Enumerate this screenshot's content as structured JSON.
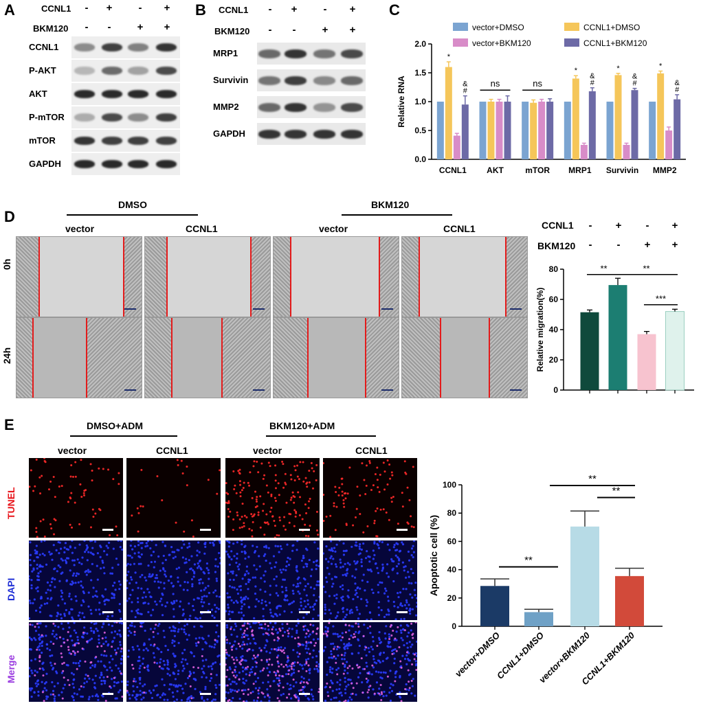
{
  "panels": {
    "A": "A",
    "B": "B",
    "C": "C",
    "D": "D",
    "E": "E"
  },
  "blotA": {
    "header": {
      "row1_label": "CCNL1",
      "row1": [
        "-",
        "+",
        "-",
        "+"
      ],
      "row2_label": "BKM120",
      "row2": [
        "-",
        "-",
        "+",
        "+"
      ]
    },
    "rows": [
      "CCNL1",
      "P-AKT",
      "AKT",
      "P-mTOR",
      "mTOR",
      "GAPDH"
    ],
    "intensity": [
      [
        0.45,
        0.8,
        0.5,
        0.85
      ],
      [
        0.25,
        0.6,
        0.35,
        0.75
      ],
      [
        0.9,
        0.9,
        0.9,
        0.9
      ],
      [
        0.3,
        0.75,
        0.45,
        0.8
      ],
      [
        0.85,
        0.8,
        0.8,
        0.8
      ],
      [
        0.9,
        0.9,
        0.9,
        0.9
      ]
    ]
  },
  "blotB": {
    "header": {
      "row1_label": "CCNL1",
      "row1": [
        "-",
        "+",
        "-",
        "+"
      ],
      "row2_label": "BKM120",
      "row2": [
        "-",
        "-",
        "+",
        "+"
      ]
    },
    "rows": [
      "MRP1",
      "Survivin",
      "MMP2",
      "GAPDH"
    ],
    "intensity": [
      [
        0.6,
        0.85,
        0.55,
        0.75
      ],
      [
        0.55,
        0.8,
        0.45,
        0.6
      ],
      [
        0.6,
        0.85,
        0.4,
        0.75
      ],
      [
        0.85,
        0.85,
        0.85,
        0.85
      ]
    ]
  },
  "panelD": {
    "groups": [
      "DMSO",
      "BKM120"
    ],
    "cols": [
      "vector",
      "CCNL1",
      "vector",
      "CCNL1"
    ],
    "rows": [
      "0h",
      "24h"
    ]
  },
  "panelE": {
    "groups": [
      "DMSO+ADM",
      "BKM120+ADM"
    ],
    "cols": [
      "vector",
      "CCNL1",
      "vector",
      "CCNL1"
    ],
    "rows": [
      "TUNEL",
      "DAPI",
      "Merge"
    ],
    "row_colors": [
      "#e8151b",
      "#1f2fd6",
      "#9b3de0"
    ],
    "tunel_density": [
      0.3,
      0.1,
      0.75,
      0.4
    ]
  },
  "chart_data": [
    {
      "id": "C",
      "type": "bar",
      "ylabel": "Relative RNA",
      "ylim": [
        0,
        2.0
      ],
      "yticks": [
        "0.0",
        "0.5",
        "1.0",
        "1.5",
        "2.0"
      ],
      "categories": [
        "CCNL1",
        "AKT",
        "mTOR",
        "MRP1",
        "Survivin",
        "MMP2"
      ],
      "series": [
        {
          "name": "vector+DMSO",
          "color": "#7ba4d1",
          "values": [
            1.0,
            1.0,
            1.0,
            1.0,
            1.0,
            1.0
          ],
          "err": [
            0,
            0,
            0,
            0,
            0,
            0
          ]
        },
        {
          "name": "CCNL1+DMSO",
          "color": "#f5c65a",
          "values": [
            1.6,
            1.0,
            0.98,
            1.4,
            1.46,
            1.49
          ],
          "err": [
            0.09,
            0.04,
            0.05,
            0.05,
            0.03,
            0.04
          ]
        },
        {
          "name": "vector+BKM120",
          "color": "#d88cc8",
          "values": [
            0.41,
            1.0,
            1.0,
            0.25,
            0.25,
            0.5
          ],
          "err": [
            0.04,
            0.04,
            0.04,
            0.03,
            0.03,
            0.06
          ]
        },
        {
          "name": "CCNL1+BKM120",
          "color": "#6d6aa6",
          "values": [
            0.95,
            1.0,
            1.0,
            1.18,
            1.2,
            1.04
          ],
          "err": [
            0.15,
            0.1,
            0.05,
            0.06,
            0.03,
            0.08
          ]
        }
      ],
      "markers": [
        {
          "category": "CCNL1",
          "series": 1,
          "text": "*"
        },
        {
          "category": "MRP1",
          "series": 1,
          "text": "*"
        },
        {
          "category": "Survivin",
          "series": 1,
          "text": "*"
        },
        {
          "category": "MMP2",
          "series": 1,
          "text": "*"
        },
        {
          "category": "CCNL1",
          "series": 3,
          "text": "&\n#"
        },
        {
          "category": "MRP1",
          "series": 3,
          "text": "&\n#"
        },
        {
          "category": "Survivin",
          "series": 3,
          "text": "&\n#"
        },
        {
          "category": "MMP2",
          "series": 3,
          "text": "&\n#"
        }
      ],
      "ns_labels": [
        "ns",
        "ns"
      ]
    },
    {
      "id": "D",
      "type": "bar",
      "ylabel": "Relative migration(%)",
      "ylim": [
        0,
        80
      ],
      "yticks": [
        "0",
        "20",
        "40",
        "60",
        "80"
      ],
      "header": {
        "row1_label": "CCNL1",
        "row1": [
          "-",
          "+",
          "-",
          "+"
        ],
        "row2_label": "BKM120",
        "row2": [
          "-",
          "-",
          "+",
          "+"
        ]
      },
      "values": [
        51.5,
        69.5,
        37,
        52
      ],
      "err": [
        1.5,
        4.5,
        1.8,
        1.5
      ],
      "colors": [
        "#0f4a3c",
        "#1c7e72",
        "#f7c3cf",
        "#dff2ec"
      ],
      "sig": [
        {
          "from": 0,
          "to": 1,
          "text": "**"
        },
        {
          "from": 1,
          "to": 3,
          "text": "**"
        },
        {
          "from": 2,
          "to": 3,
          "text": "***"
        }
      ]
    },
    {
      "id": "E",
      "type": "bar",
      "ylabel": "Apoptotic cell (%)",
      "ylim": [
        0,
        100
      ],
      "yticks": [
        "0",
        "20",
        "40",
        "60",
        "80",
        "100"
      ],
      "categories": [
        "vector+DMSO",
        "CCNL1+DMSO",
        "vector+BKM120",
        "CCNL1+BKM120"
      ],
      "values": [
        28.5,
        10,
        70.5,
        35.5
      ],
      "err": [
        5,
        2,
        11,
        5.5
      ],
      "colors": [
        "#1b3a66",
        "#6fa1c6",
        "#b7dbe6",
        "#d24a3a"
      ],
      "sig": [
        {
          "from": 0,
          "to": 1,
          "text": "**"
        },
        {
          "from": 1,
          "to": 3,
          "text": "**"
        },
        {
          "from": 2,
          "to": 3,
          "text": "**"
        }
      ]
    }
  ]
}
